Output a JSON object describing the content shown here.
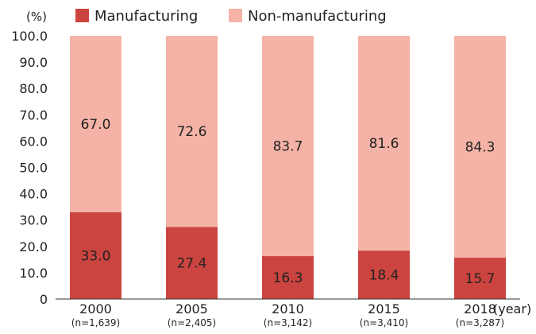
{
  "chart_data": {
    "type": "bar",
    "stacked": true,
    "unit_label": "(%)",
    "x_unit_label": "(year)",
    "categories": [
      "2000",
      "2005",
      "2010",
      "2015",
      "2018"
    ],
    "category_notes": [
      "(n=1,639)",
      "(n=2,405)",
      "(n=3,142)",
      "(n=3,410)",
      "(n=3,287)"
    ],
    "series": [
      {
        "name": "Manufacturing",
        "values": [
          33.0,
          27.4,
          16.3,
          18.4,
          15.7
        ],
        "color": "#cc4440"
      },
      {
        "name": "Non-manufacturing",
        "values": [
          67.0,
          72.6,
          83.7,
          81.6,
          84.3
        ],
        "color": "#f4b3a6"
      }
    ],
    "ylim": [
      0,
      100
    ],
    "yticks": [
      "0",
      "10.0",
      "20.0",
      "30.0",
      "40.0",
      "50.0",
      "60.0",
      "70.0",
      "80.0",
      "90.0",
      "100.0"
    ],
    "legend_position": "top",
    "grid": false
  }
}
